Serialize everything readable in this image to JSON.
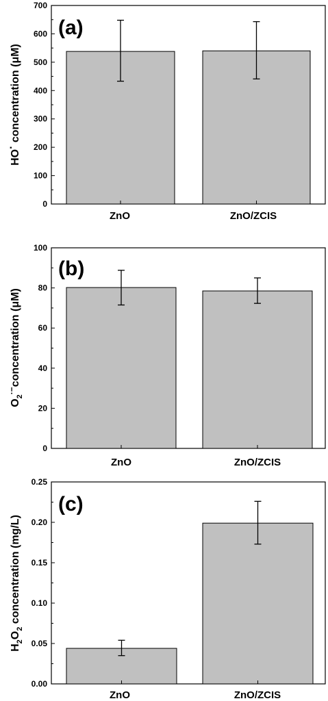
{
  "chart_data": [
    {
      "type": "bar",
      "panel_label": "(a)",
      "ylabel_parts": [
        "HO",
        "·",
        " concentration (μM)"
      ],
      "categories": [
        "ZnO",
        "ZnO/ZCIS"
      ],
      "values": [
        538,
        540
      ],
      "errors_low": [
        433,
        441
      ],
      "errors_high": [
        648,
        643
      ],
      "ylim": [
        0,
        700
      ],
      "yticks": [
        "0",
        "100",
        "200",
        "300",
        "400",
        "500",
        "600",
        "700"
      ],
      "bar_color": "#c0c0c0"
    },
    {
      "type": "bar",
      "panel_label": "(b)",
      "ylabel_parts": [
        "O",
        "2",
        "·−",
        "concentration (μM)"
      ],
      "categories": [
        "ZnO",
        "ZnO/ZCIS"
      ],
      "values": [
        80.2,
        78.5
      ],
      "errors_low": [
        71.5,
        72.3
      ],
      "errors_high": [
        88.8,
        85.0
      ],
      "ylim": [
        0,
        100
      ],
      "yticks": [
        "0",
        "20",
        "40",
        "60",
        "80",
        "100"
      ],
      "bar_color": "#c0c0c0"
    },
    {
      "type": "bar",
      "panel_label": "(c)",
      "ylabel_parts": [
        "H",
        "2",
        "O",
        "2",
        " concentration (mg/L)"
      ],
      "categories": [
        "ZnO",
        "ZnO/ZCIS"
      ],
      "values": [
        0.044,
        0.199
      ],
      "errors_low": [
        0.035,
        0.173
      ],
      "errors_high": [
        0.054,
        0.226
      ],
      "ylim": [
        0,
        0.25
      ],
      "yticks": [
        "0.00",
        "0.05",
        "0.10",
        "0.15",
        "0.20",
        "0.25"
      ],
      "bar_color": "#c0c0c0"
    }
  ]
}
